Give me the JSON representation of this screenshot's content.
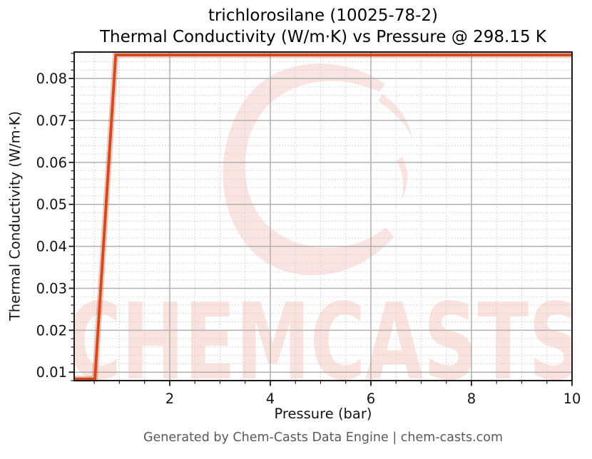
{
  "figure": {
    "title_line1": "trichlorosilane (10025-78-2)",
    "title_line2": "Thermal Conductivity (W/m·K) vs Pressure @ 298.15 K",
    "footer": "Generated by Chem-Casts Data Engine | chem-casts.com"
  },
  "watermark": {
    "text": "CHEMCASTS",
    "logo": "chemcasts-brush-c-logo",
    "color": "#e25540"
  },
  "chart_data": {
    "type": "line",
    "title": "trichlorosilane (10025-78-2) Thermal Conductivity (W/m·K) vs Pressure @ 298.15 K",
    "xlabel": "Pressure (bar)",
    "ylabel": "Thermal Conductivity (W/m·K)",
    "xlim": [
      0.1,
      10
    ],
    "ylim": [
      0.008,
      0.0863
    ],
    "xticks": [
      2,
      4,
      6,
      8,
      10
    ],
    "xtick_labels": [
      "2",
      "4",
      "6",
      "8",
      "10"
    ],
    "yticks": [
      0.01,
      0.02,
      0.03,
      0.04,
      0.05,
      0.06,
      0.07,
      0.08
    ],
    "ytick_labels": [
      "0.01",
      "0.02",
      "0.03",
      "0.04",
      "0.05",
      "0.06",
      "0.07",
      "0.08"
    ],
    "x_minor_step": 0.5,
    "y_minor_step": 0.002,
    "grid": {
      "major": true,
      "minor": true
    },
    "legend": "none",
    "series": [
      {
        "name": "thermal-conductivity",
        "color": "#d2491e",
        "points": [
          [
            0.1,
            0.0084
          ],
          [
            0.5125,
            0.0084
          ],
          [
            0.925,
            0.0856
          ],
          [
            10,
            0.0856
          ]
        ]
      }
    ]
  }
}
